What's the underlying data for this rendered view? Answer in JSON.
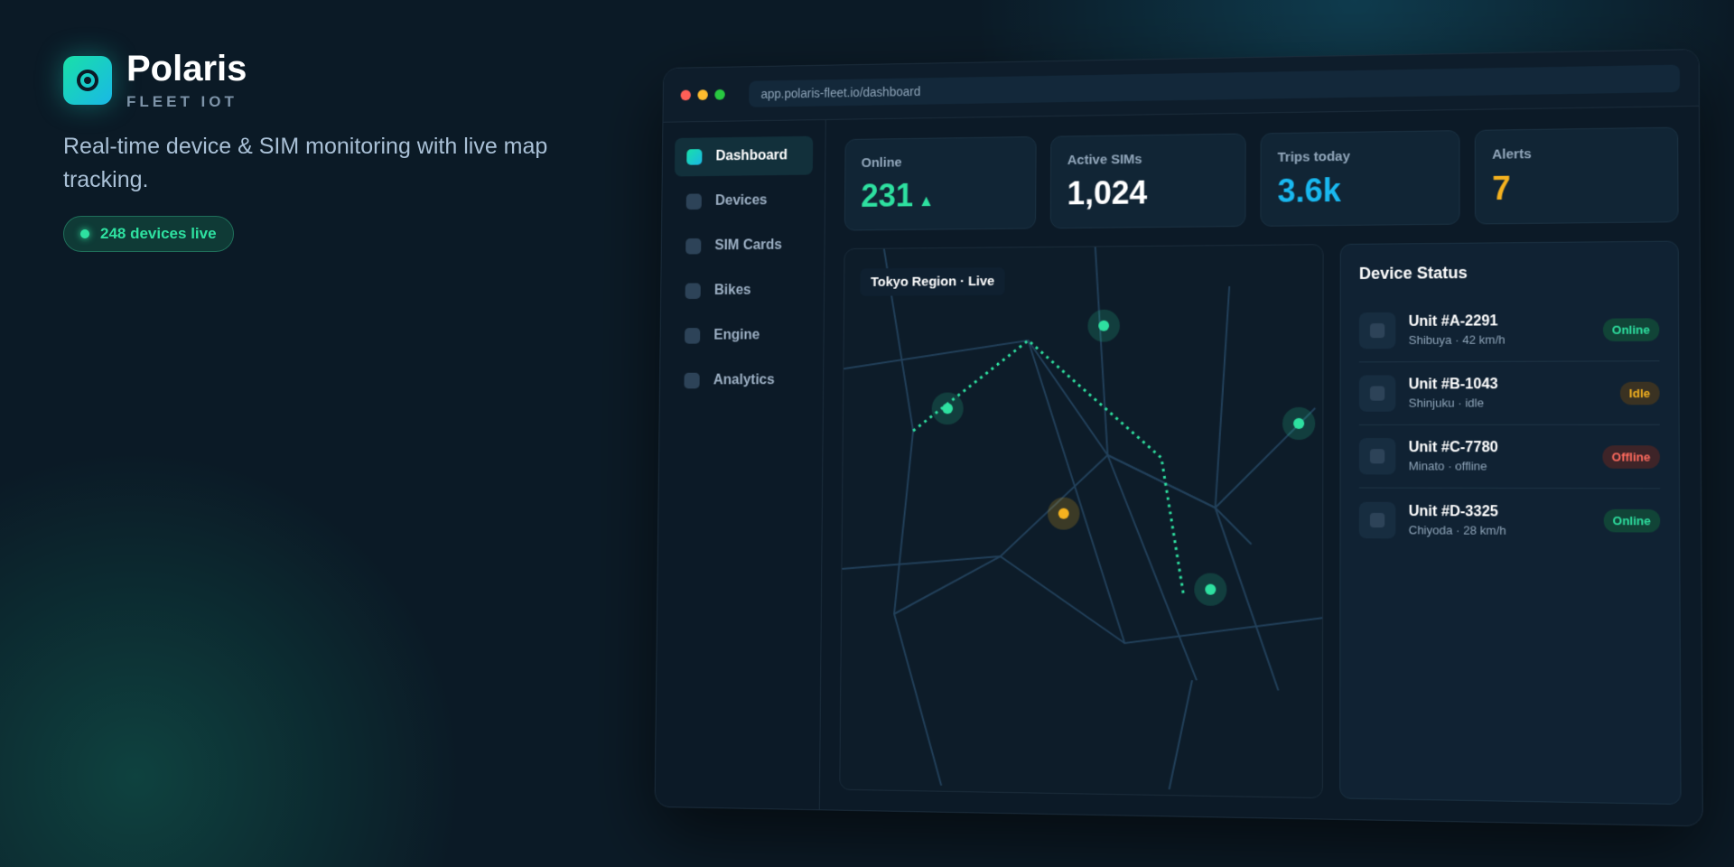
{
  "brand": {
    "name": "Polaris",
    "tagline": "FLEET IOT"
  },
  "hero": {
    "headline": "Real-time device & SIM monitoring with live map tracking.",
    "badge": "248 devices live"
  },
  "browser": {
    "url": "app.polaris-fleet.io/dashboard"
  },
  "nav": [
    "Dashboard",
    "Devices",
    "SIM Cards",
    "Bikes",
    "Engine",
    "Analytics"
  ],
  "stats": [
    {
      "label": "Online",
      "value": "231",
      "trend": "▲"
    },
    {
      "label": "Active SIMs",
      "value": "1,024"
    },
    {
      "label": "Trips today",
      "value": "3.6k"
    },
    {
      "label": "Alerts",
      "value": "7"
    }
  ],
  "map": {
    "label": "Tokyo Region · Live"
  },
  "status": {
    "title": "Device Status",
    "devices": [
      {
        "name": "Unit #A-2291",
        "detail": "Shibuya · 42 km/h",
        "status": "Online"
      },
      {
        "name": "Unit #B-1043",
        "detail": "Shinjuku · idle",
        "status": "Idle"
      },
      {
        "name": "Unit #C-7780",
        "detail": "Minato · offline",
        "status": "Offline"
      },
      {
        "name": "Unit #D-3325",
        "detail": "Chiyoda · 28 km/h",
        "status": "Online"
      }
    ]
  }
}
